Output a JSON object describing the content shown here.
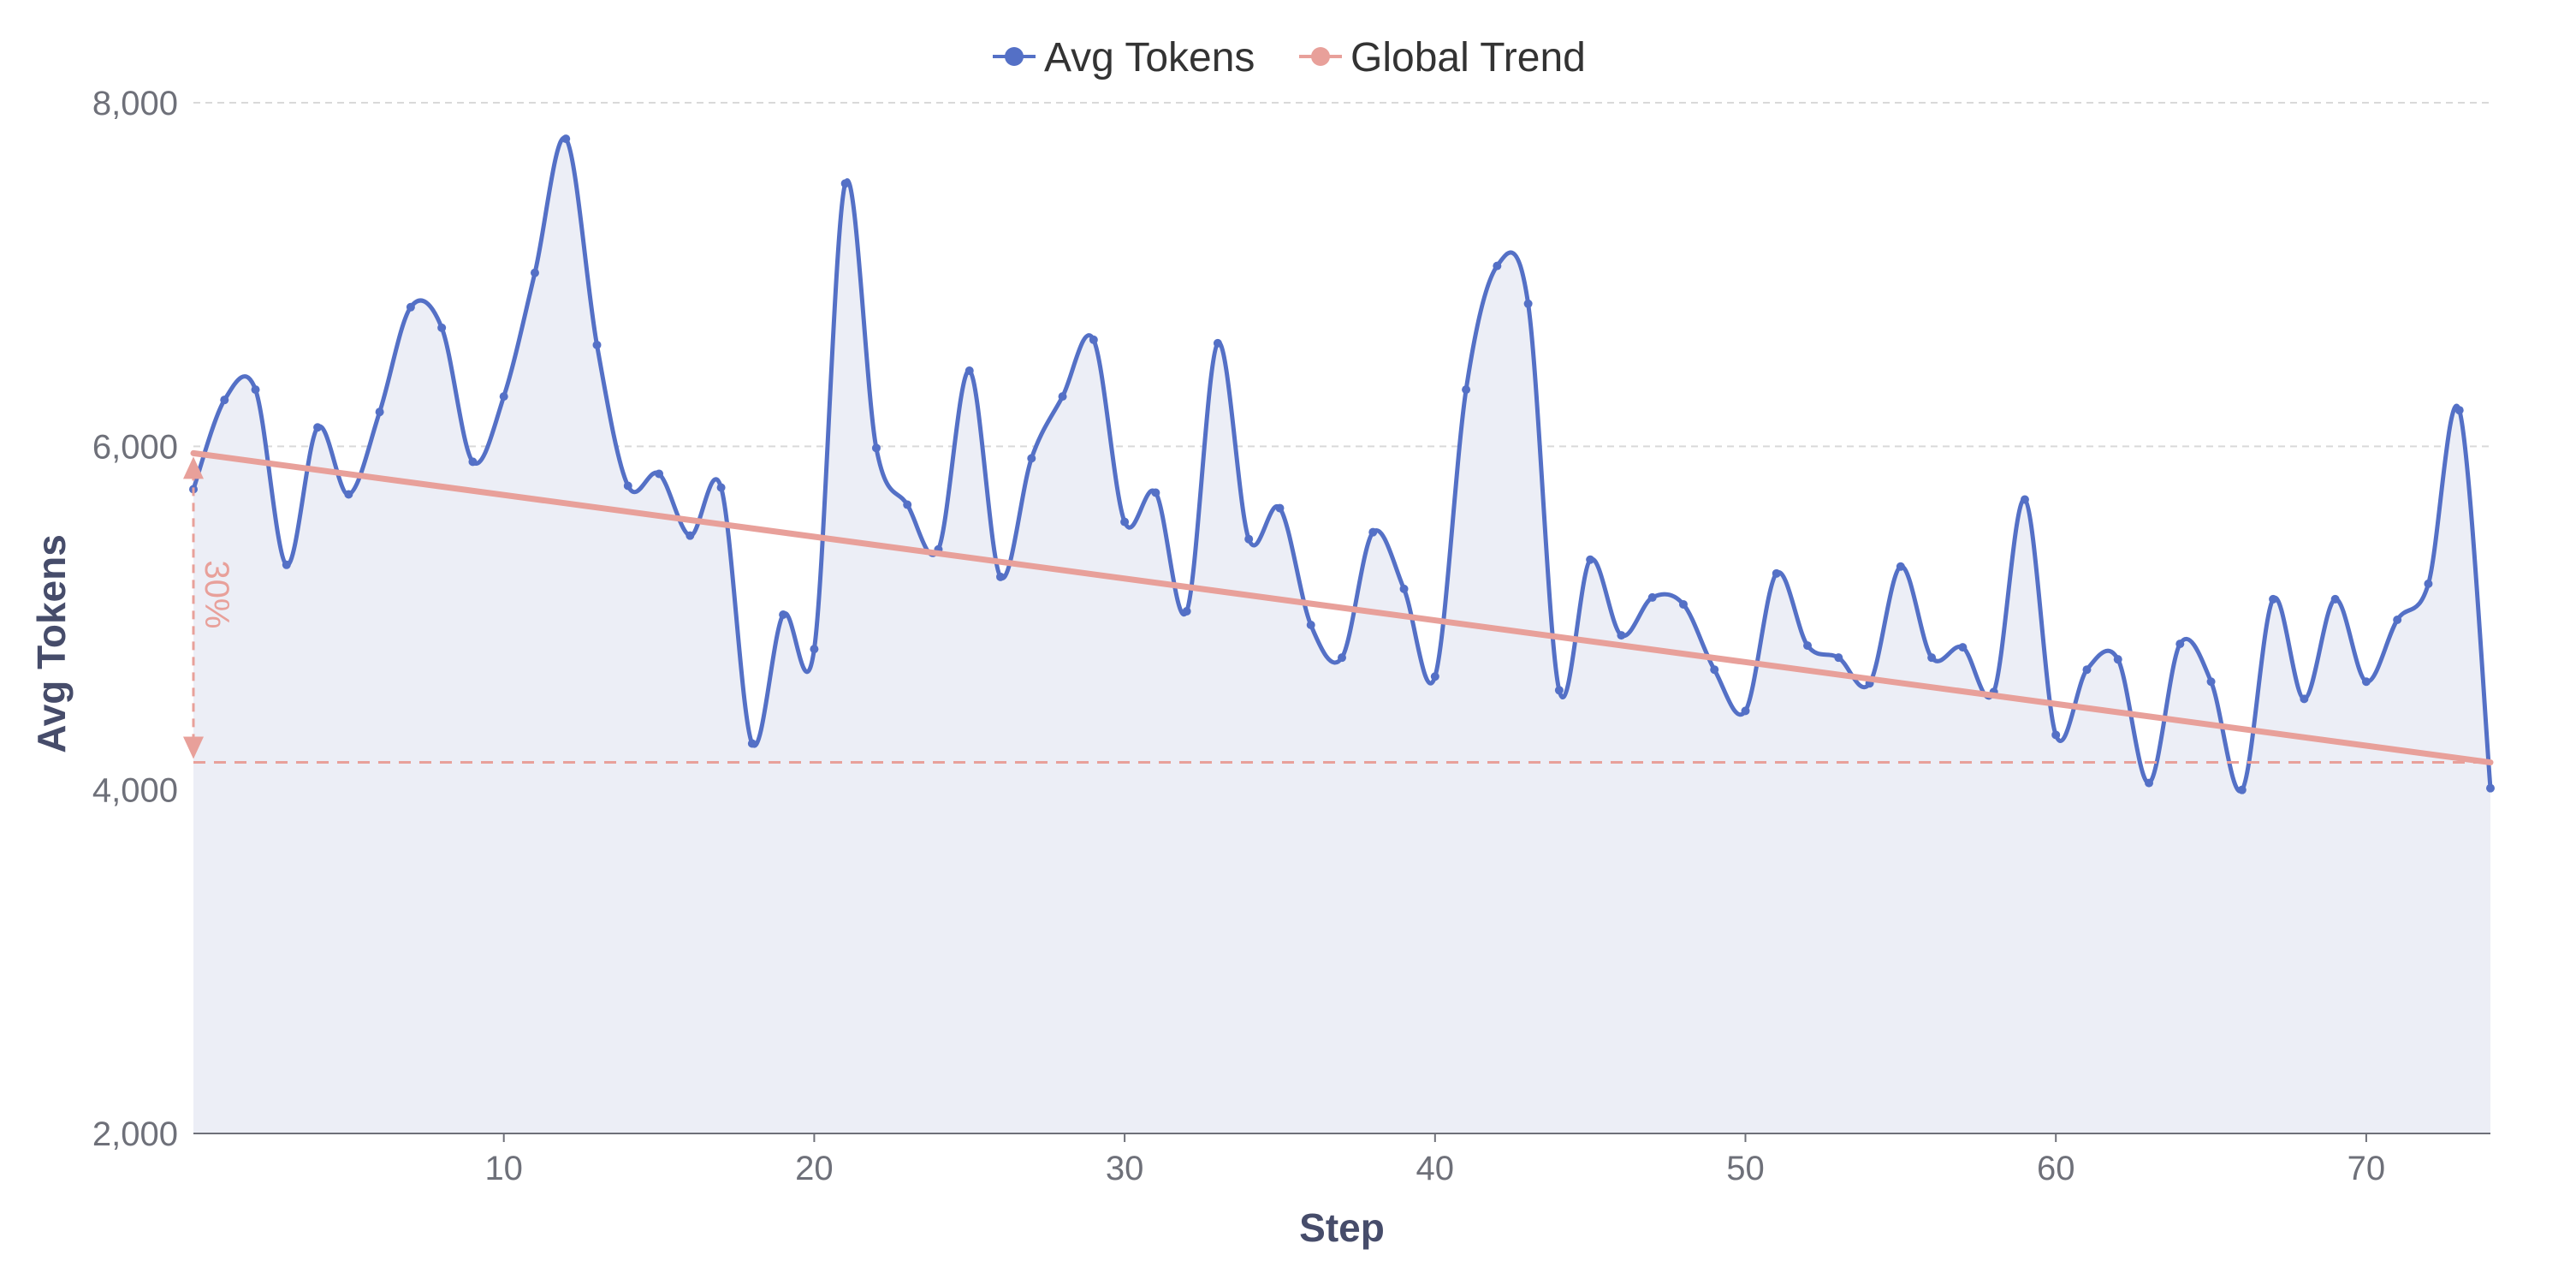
{
  "chart_data": {
    "type": "line",
    "x": [
      0,
      1,
      2,
      3,
      4,
      5,
      6,
      7,
      8,
      9,
      10,
      11,
      12,
      13,
      14,
      15,
      16,
      17,
      18,
      19,
      20,
      21,
      22,
      23,
      24,
      25,
      26,
      27,
      28,
      29,
      30,
      31,
      32,
      33,
      34,
      35,
      36,
      37,
      38,
      39,
      40,
      41,
      42,
      43,
      44,
      45,
      46,
      47,
      48,
      49,
      50,
      51,
      52,
      53,
      54,
      55,
      56,
      57,
      58,
      59,
      60,
      61,
      62,
      63,
      64,
      65,
      66,
      67,
      68,
      69,
      70,
      71,
      72,
      73,
      74
    ],
    "series": [
      {
        "name": "Avg Tokens",
        "color": "#5470c6",
        "smooth": true,
        "area": true,
        "area_color": "#eceef6",
        "values": [
          5750,
          6270,
          6330,
          5310,
          6110,
          5720,
          6200,
          6810,
          6690,
          5910,
          6290,
          7010,
          7790,
          6590,
          5770,
          5840,
          5480,
          5760,
          4270,
          5020,
          4820,
          7530,
          5990,
          5660,
          5400,
          6440,
          5240,
          5930,
          6290,
          6620,
          5560,
          5730,
          5040,
          6600,
          5460,
          5640,
          4960,
          4770,
          5500,
          5170,
          4660,
          6330,
          7050,
          6830,
          4580,
          5340,
          4900,
          5120,
          5080,
          4700,
          4460,
          5260,
          4840,
          4770,
          4620,
          5300,
          4770,
          4830,
          4570,
          5690,
          4320,
          4700,
          4760,
          4040,
          4850,
          4630,
          4000,
          5110,
          4530,
          5110,
          4630,
          4990,
          5200,
          6210,
          4010
        ]
      },
      {
        "name": "Global Trend",
        "color": "#e8a09a",
        "x": [
          0,
          74
        ],
        "values": [
          5960,
          4160
        ]
      }
    ],
    "annotation": {
      "label": "30%",
      "from": 5960,
      "to": 4160,
      "at_x": 0,
      "color": "#e8a09a"
    },
    "xlabel": "Step",
    "ylabel": "Avg Tokens",
    "xlim": [
      0,
      74
    ],
    "ylim": [
      2000,
      8000
    ],
    "x_ticks": [
      10,
      20,
      30,
      40,
      50,
      60,
      70
    ],
    "x_tick_labels": [
      "10",
      "20",
      "30",
      "40",
      "50",
      "60",
      "70"
    ],
    "y_ticks": [
      2000,
      4000,
      6000,
      8000
    ],
    "y_tick_labels": [
      "2,000",
      "4,000",
      "6,000",
      "8,000"
    ],
    "grid": true,
    "legend_position": "top-center"
  }
}
